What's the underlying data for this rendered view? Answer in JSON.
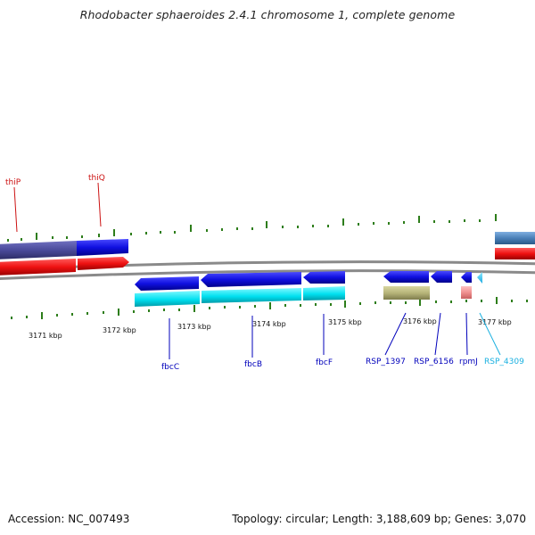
{
  "header": {
    "title": "Rhodobacter sphaeroides 2.4.1 chromosome 1, complete genome"
  },
  "footer": {
    "accession": "Accession: NC_007493",
    "summary": "Topology: circular; Length: 3,188,609 bp; Genes: 3,070"
  },
  "colors": {
    "backbone": "#808080",
    "tick": "#2d7d1a",
    "gene_forward": "#1010e0",
    "cds_reverse": "#00e0f0",
    "cds_forward": "#ee1111",
    "cds_track_purple": "#4a4a9a",
    "steel_blue": "#4a80b8",
    "khaki": "#b7b57a",
    "pink": "#f09090",
    "label_red": "#cc1111",
    "label_blue": "#0000bb",
    "label_cyan": "#1ab0e0"
  },
  "scale_labels": [
    "3171 kbp",
    "3172 kbp",
    "3173 kbp",
    "3174 kbp",
    "3175 kbp",
    "3176 kbp",
    "3177 kbp"
  ],
  "gene_labels_top": [
    {
      "name": "thiP",
      "color": "label_red"
    },
    {
      "name": "thiQ",
      "color": "label_red"
    }
  ],
  "gene_labels_bottom": [
    {
      "name": "fbcC",
      "color": "label_blue"
    },
    {
      "name": "fbcB",
      "color": "label_blue"
    },
    {
      "name": "fbcF",
      "color": "label_blue"
    },
    {
      "name": "RSP_1397",
      "color": "label_blue"
    },
    {
      "name": "RSP_6156",
      "color": "label_blue"
    },
    {
      "name": "rpmJ",
      "color": "label_blue"
    },
    {
      "name": "RSP_4309",
      "color": "label_cyan"
    }
  ]
}
